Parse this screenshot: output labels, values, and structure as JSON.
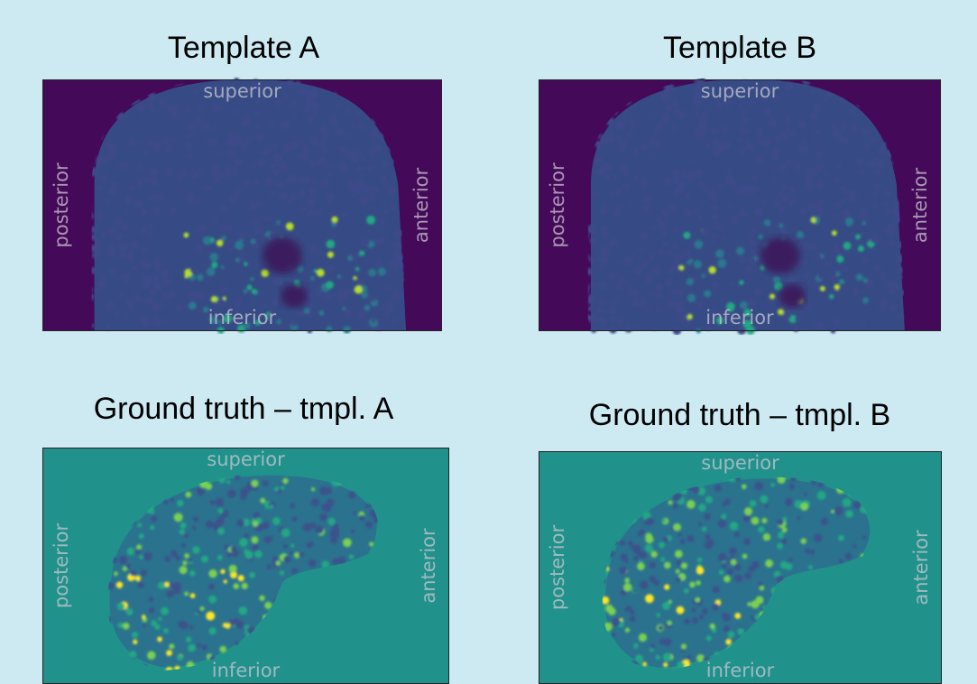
{
  "panels": [
    {
      "title": "Template A",
      "labels": {
        "top": "superior",
        "bottom": "inferior",
        "left": "posterior",
        "right": "anterior"
      }
    },
    {
      "title": "Template B",
      "labels": {
        "top": "superior",
        "bottom": "inferior",
        "left": "posterior",
        "right": "anterior"
      }
    },
    {
      "title": "Ground truth – tmpl. A",
      "labels": {
        "top": "superior",
        "bottom": "inferior",
        "left": "posterior",
        "right": "anterior"
      }
    },
    {
      "title": "Ground truth – tmpl. B",
      "labels": {
        "top": "superior",
        "bottom": "inferior",
        "left": "posterior",
        "right": "anterior"
      }
    }
  ]
}
